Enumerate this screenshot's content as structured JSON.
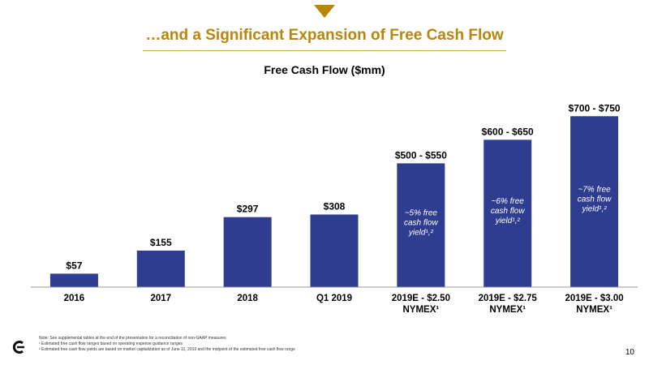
{
  "slide": {
    "title": "…and a Significant Expansion of Free Cash Flow",
    "page_number": "10",
    "accent_color": "#b8860b",
    "bar_color": "#2e3d8f",
    "footnotes": [
      "Note: See supplemental tables at the end of the presentation for a reconciliation of non-GAAP measures",
      "¹ Estimated free cash flow ranges based on operating expense guidance ranges",
      "² Estimated free cash flow yields are based on market capitalization as of June 11, 2019 and the midpoint of the estimated free cash flow range"
    ]
  },
  "chart_data": {
    "type": "bar",
    "title": "Free Cash Flow ($mm)",
    "categories": [
      [
        "2016"
      ],
      [
        "2017"
      ],
      [
        "2018"
      ],
      [
        "Q1 2019"
      ],
      [
        "2019E - $2.50",
        "NYMEX¹"
      ],
      [
        "2019E - $2.75",
        "NYMEX¹"
      ],
      [
        "2019E - $3.00",
        "NYMEX¹"
      ]
    ],
    "values": [
      57,
      155,
      297,
      308,
      525,
      625,
      725
    ],
    "data_labels": [
      "$57",
      "$155",
      "$297",
      "$308",
      "$500 - $550",
      "$600 - $650",
      "$700 - $750"
    ],
    "bar_annotations": [
      [],
      [],
      [],
      [],
      [
        "~5% free",
        "cash flow",
        "yield¹,²"
      ],
      [
        "~6% free",
        "cash flow",
        "yield¹,²"
      ],
      [
        "~7% free",
        "cash flow",
        "yield¹,²"
      ]
    ],
    "ylim": [
      0,
      750
    ]
  }
}
